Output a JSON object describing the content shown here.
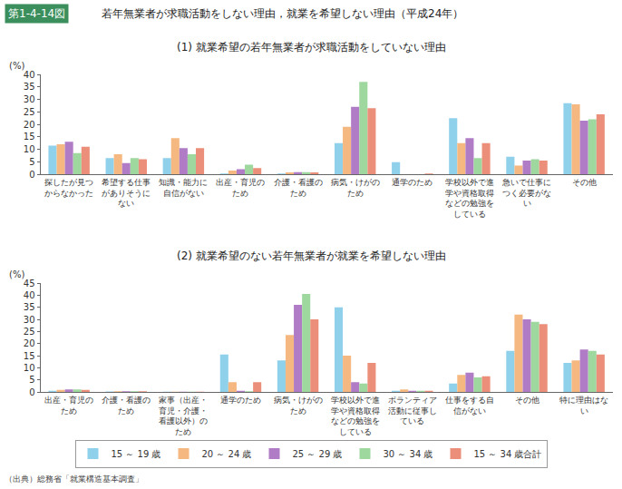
{
  "figure_label": "第1-4-14図",
  "title": "若年無業者が求職活動をしない理由，就業を希望しない理由（平成24年）",
  "source": "（出典）総務省「就業構造基本調査」",
  "chart_data": [
    {
      "type": "bar",
      "subtitle": "(1) 就業希望の若年無業者が求職活動をしていない理由",
      "y_label": "(%)",
      "legend": "bottom",
      "grid": false,
      "ylim": [
        0,
        40
      ],
      "yticks": [
        0,
        5,
        10,
        15,
        20,
        25,
        30,
        35,
        40
      ],
      "categories": [
        "探したが見つからなかった",
        "希望する仕事がありそうにない",
        "知識・能力に自信がない",
        "出産・育児のため",
        "介護・看護のため",
        "病気・けがのため",
        "通学のため",
        "学校以外で進学や資格取得などの勉強をしている",
        "急いで仕事につく必要がない",
        "その他"
      ],
      "series": [
        {
          "name": "15 ～ 19 歳",
          "color": "#8fd0ea",
          "values": [
            11.5,
            6.5,
            6.5,
            0.3,
            0.3,
            12.5,
            4.8,
            22.5,
            7,
            28.5
          ]
        },
        {
          "name": "20 ～ 24 歳",
          "color": "#f5b880",
          "values": [
            12,
            8,
            14.5,
            1.5,
            0.7,
            19,
            0,
            12.5,
            3.5,
            28
          ]
        },
        {
          "name": "25 ～ 29 歳",
          "color": "#b07cc6",
          "values": [
            13,
            4.5,
            10.5,
            2,
            0.8,
            27,
            0,
            14.5,
            5.5,
            21.5
          ]
        },
        {
          "name": "30 ～ 34 歳",
          "color": "#9fd89f",
          "values": [
            8.5,
            6.5,
            8,
            3.8,
            0.8,
            37,
            0,
            6.5,
            6,
            22
          ]
        },
        {
          "name": "15 ～ 34 歳合計",
          "color": "#ec8f7a",
          "values": [
            11,
            6,
            10.5,
            2.5,
            0.7,
            26.5,
            0.3,
            12.5,
            5.5,
            24
          ]
        }
      ]
    },
    {
      "type": "bar",
      "subtitle": "(2) 就業希望のない若年無業者が就業を希望しない理由",
      "y_label": "(%)",
      "grid": false,
      "ylim": [
        0,
        45
      ],
      "yticks": [
        0,
        5,
        10,
        15,
        20,
        25,
        30,
        35,
        40,
        45
      ],
      "categories": [
        "出産・育児のため",
        "介護・看護のため",
        "家事（出産・育児・介護・看護以外）のため",
        "通学のため",
        "病気・けがのため",
        "学校以外で進学や資格取得などの勉強をしている",
        "ボランティア活動に従事している",
        "仕事をする自信がない",
        "その他",
        "特に理由はない"
      ],
      "series": [
        {
          "name": "15 ～ 19 歳",
          "color": "#8fd0ea",
          "values": [
            0.5,
            0.2,
            0.1,
            15.5,
            13,
            35,
            0.5,
            3.5,
            17,
            12
          ]
        },
        {
          "name": "20 ～ 24 歳",
          "color": "#f5b880",
          "values": [
            0.8,
            0.3,
            0.1,
            4,
            23.5,
            15,
            1,
            7,
            32,
            13
          ]
        },
        {
          "name": "25 ～ 29 歳",
          "color": "#b07cc6",
          "values": [
            1,
            0.3,
            0.1,
            0.5,
            36,
            4,
            0.5,
            8,
            30,
            17.5
          ]
        },
        {
          "name": "30 ～ 34 歳",
          "color": "#9fd89f",
          "values": [
            1,
            0.3,
            0.1,
            0.3,
            40.5,
            3.5,
            0.5,
            6,
            29,
            17
          ]
        },
        {
          "name": "15 ～ 34 歳合計",
          "color": "#ec8f7a",
          "values": [
            0.8,
            0.3,
            0.1,
            4,
            30,
            12,
            0.5,
            6.5,
            28,
            15.5
          ]
        }
      ]
    }
  ]
}
